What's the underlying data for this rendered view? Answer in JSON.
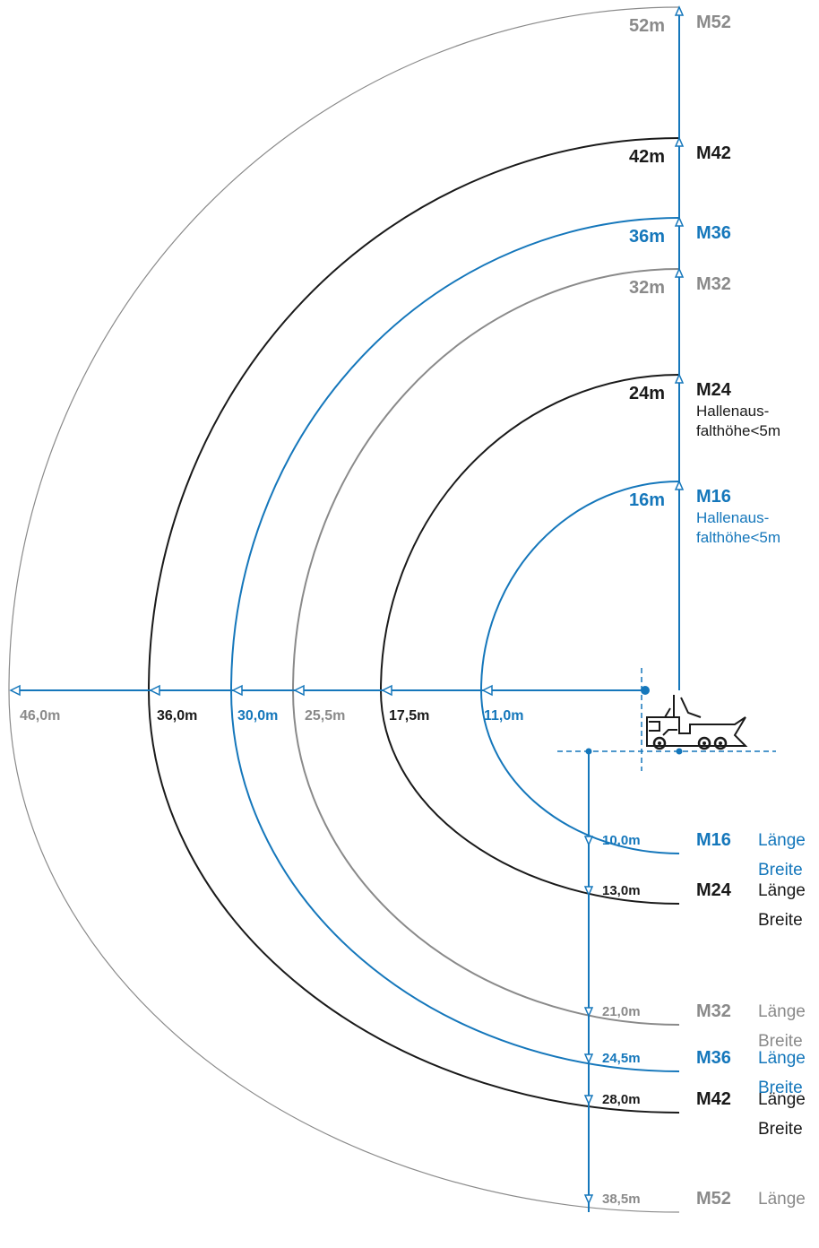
{
  "colors": {
    "gray": "#8a8a8a",
    "black": "#1a1a1a",
    "blue": "#1577bb",
    "axis": "#1577bb"
  },
  "models": [
    {
      "id": "m52",
      "name": "M52",
      "height": "52m",
      "reach": "46,0m",
      "depth": "38,5m",
      "color": "gray",
      "right_lines": [
        "Länge"
      ],
      "sub": []
    },
    {
      "id": "m42",
      "name": "M42",
      "height": "42m",
      "reach": "36,0m",
      "depth": "28,0m",
      "color": "black",
      "right_lines": [
        "Länge",
        "Breite"
      ],
      "sub": []
    },
    {
      "id": "m36",
      "name": "M36",
      "height": "36m",
      "reach": "30,0m",
      "depth": "24,5m",
      "color": "blue",
      "right_lines": [
        "Länge",
        "Breite"
      ],
      "sub": []
    },
    {
      "id": "m32",
      "name": "M32",
      "height": "32m",
      "reach": "25,5m",
      "depth": "21,0m",
      "color": "gray",
      "right_lines": [
        "Länge",
        "Breite"
      ],
      "sub": []
    },
    {
      "id": "m24",
      "name": "M24",
      "height": "24m",
      "reach": "17,5m",
      "depth": "13,0m",
      "color": "black",
      "right_lines": [
        "Länge",
        "Breite"
      ],
      "sub": [
        "Hallenaus-",
        "falthöhe<5m"
      ]
    },
    {
      "id": "m16",
      "name": "M16",
      "height": "16m",
      "reach": "11,0m",
      "depth": "10,0m",
      "color": "blue",
      "right_lines": [
        "Länge",
        "Breite"
      ],
      "sub": [
        "Hallenaus-",
        "falthöhe<5m"
      ]
    }
  ],
  "truck_icon": "concrete-pump-truck-icon"
}
